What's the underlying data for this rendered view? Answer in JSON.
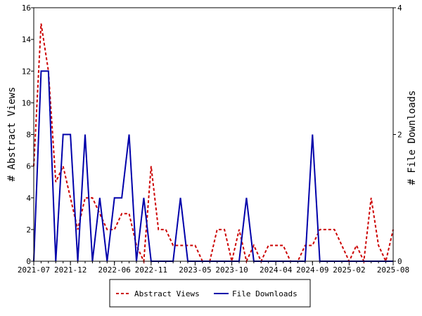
{
  "chart_data": {
    "type": "line",
    "x": [
      "2021-07",
      "2021-08",
      "2021-09",
      "2021-10",
      "2021-11",
      "2021-12",
      "2022-01",
      "2022-02",
      "2022-03",
      "2022-04",
      "2022-05",
      "2022-06",
      "2022-07",
      "2022-08",
      "2022-09",
      "2022-10",
      "2022-11",
      "2022-12",
      "2023-01",
      "2023-02",
      "2023-03",
      "2023-04",
      "2023-05",
      "2023-06",
      "2023-07",
      "2023-08",
      "2023-09",
      "2023-10",
      "2023-11",
      "2023-12",
      "2024-01",
      "2024-02",
      "2024-03",
      "2024-04",
      "2024-05",
      "2024-06",
      "2024-07",
      "2024-08",
      "2024-09",
      "2024-10",
      "2024-11",
      "2024-12",
      "2025-01",
      "2025-02",
      "2025-03",
      "2025-04",
      "2025-05",
      "2025-06",
      "2025-07",
      "2025-08"
    ],
    "x_ticks": [
      "2021-07",
      "2021-12",
      "2022-06",
      "2022-11",
      "2023-05",
      "2023-10",
      "2024-04",
      "2024-09",
      "2025-02",
      "2025-08"
    ],
    "series": [
      {
        "name": "Abstract Views",
        "axis": "left",
        "color": "#cc0000",
        "style": "dashed",
        "values": [
          6,
          15,
          12,
          5,
          6,
          4,
          2,
          4,
          4,
          3,
          2,
          2,
          3,
          3,
          1,
          0,
          6,
          2,
          2,
          1,
          1,
          1,
          1,
          0,
          0,
          2,
          2,
          0,
          2,
          0,
          1,
          0,
          1,
          1,
          1,
          0,
          0,
          1,
          1,
          2,
          2,
          2,
          1,
          0,
          1,
          0,
          4,
          1,
          0,
          2
        ]
      },
      {
        "name": "File Downloads",
        "axis": "right",
        "color": "#0000aa",
        "style": "solid",
        "values": [
          0,
          3,
          3,
          0,
          2,
          2,
          0,
          2,
          0,
          1,
          0,
          1,
          1,
          2,
          0,
          1,
          0,
          0,
          0,
          0,
          1,
          0,
          0,
          0,
          0,
          0,
          0,
          0,
          0,
          1,
          0,
          0,
          0,
          0,
          0,
          0,
          0,
          0,
          2,
          0,
          0,
          0,
          0,
          0,
          0,
          0,
          0,
          0,
          0,
          0
        ]
      }
    ],
    "y_left": {
      "label": "# Abstract Views",
      "ylim": [
        0,
        16
      ],
      "ticks": [
        "0",
        "2",
        "4",
        "6",
        "8",
        "10",
        "12",
        "14",
        "16"
      ]
    },
    "y_right": {
      "label": "# File Downloads",
      "ylim": [
        0,
        4
      ],
      "ticks": [
        "0",
        "2",
        "4"
      ]
    },
    "legend": {
      "placement": "bottom-center",
      "entries": [
        "Abstract Views",
        "File Downloads"
      ]
    },
    "grid": false
  }
}
